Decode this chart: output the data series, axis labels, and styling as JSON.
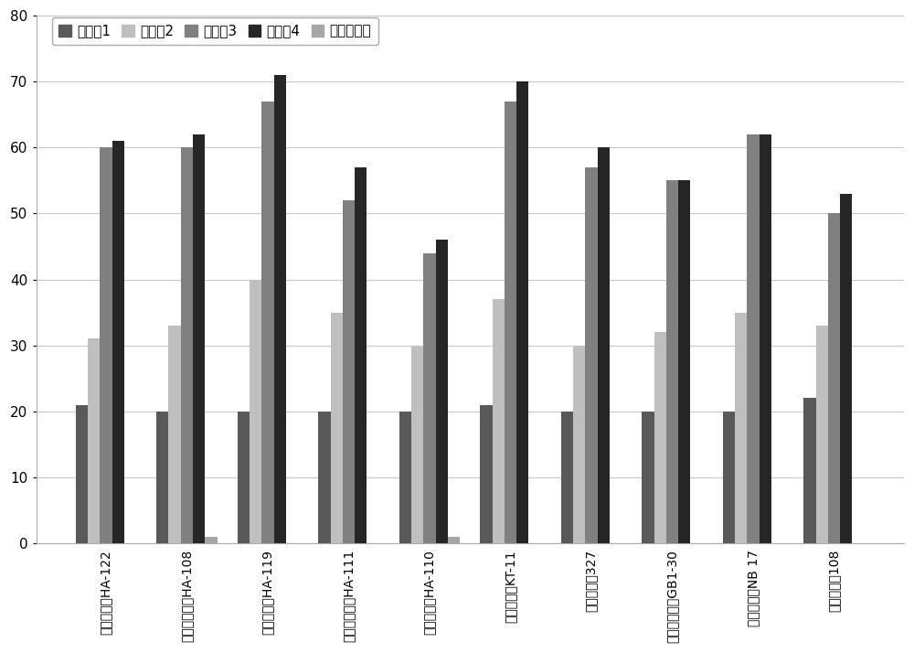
{
  "categories": [
    "瑞士乳杆菌HA-122",
    "副干酪乳杆菌HA-108",
    "植物乳杆菌HA-119",
    "鼠杉糖乳杆菌HA-111",
    "嘻热链球菌HA-110",
    "卷曲乳杆菌KT-11",
    "干酪乳杆菌327",
    "凝结芽孢杆菌GB1-30",
    "戊糖片球菌NB 17",
    "长双岐杆菌108"
  ],
  "series_order": [
    "实验组1",
    "实验组2",
    "实验组3",
    "实验组4",
    "空白对照组"
  ],
  "series": {
    "实验组1": [
      21,
      20,
      20,
      20,
      20,
      21,
      20,
      20,
      20,
      22
    ],
    "实验组2": [
      31,
      33,
      40,
      35,
      30,
      37,
      30,
      32,
      35,
      33
    ],
    "实验组3": [
      60,
      60,
      67,
      52,
      44,
      67,
      57,
      55,
      62,
      50
    ],
    "实验组4": [
      61,
      62,
      71,
      57,
      46,
      70,
      60,
      55,
      62,
      53
    ],
    "空白对照组": [
      0,
      1,
      0,
      0,
      1,
      0,
      0,
      0,
      0,
      0
    ]
  },
  "colors": {
    "实验组1": "#595959",
    "实验组2": "#bfbfbf",
    "实验组3": "#808080",
    "实验组4": "#262626",
    "空白对照组": "#a6a6a6"
  },
  "ylim": [
    0,
    80
  ],
  "yticks": [
    0,
    10,
    20,
    30,
    40,
    50,
    60,
    70,
    80
  ],
  "bar_width": 0.15,
  "figsize": [
    10.0,
    7.14
  ],
  "dpi": 100,
  "grid_color": "#c8c8c8",
  "background_color": "#ffffff",
  "legend_fontsize": 11,
  "tick_fontsize": 10,
  "ytick_fontsize": 11
}
